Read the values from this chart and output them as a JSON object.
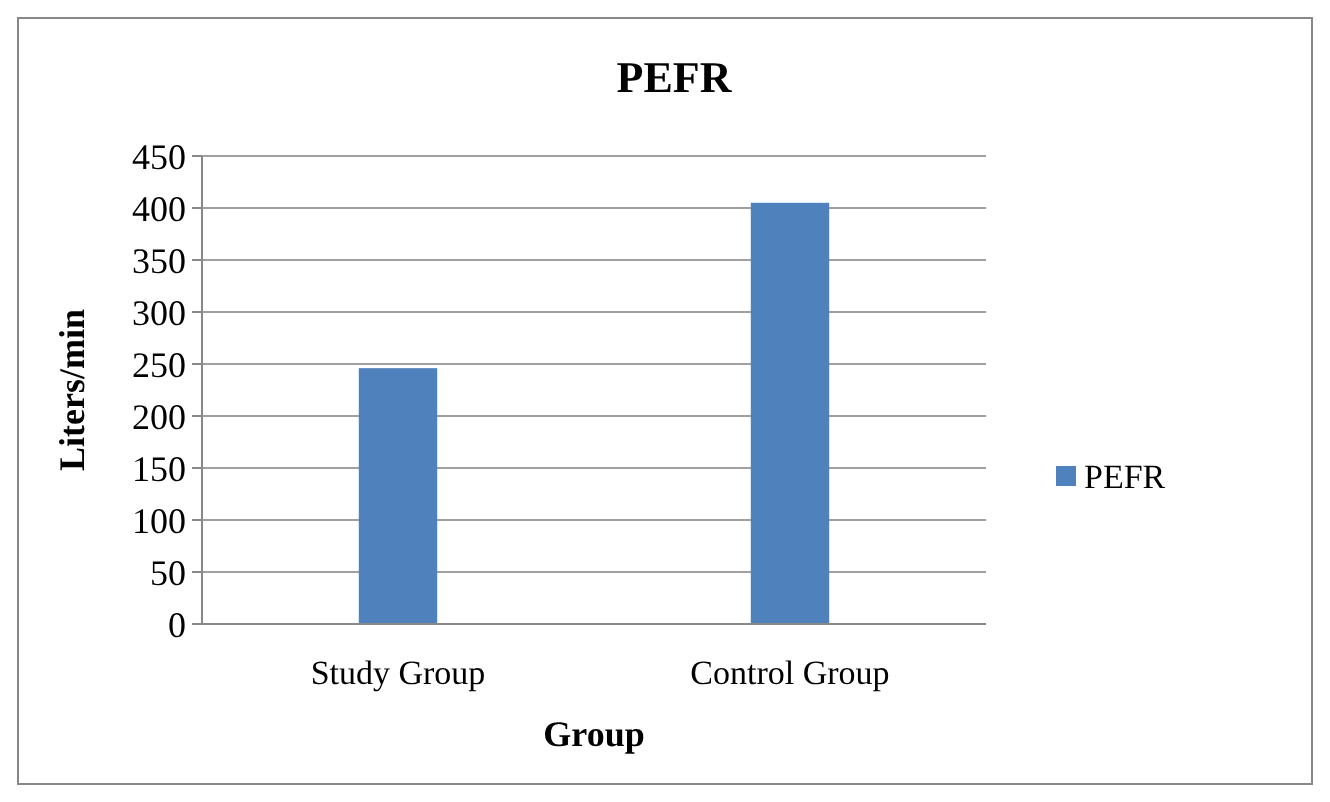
{
  "chart_data": {
    "type": "bar",
    "title": "PEFR",
    "xlabel": "Group",
    "ylabel": "Liters/min",
    "categories": [
      "Study Group",
      "Control Group"
    ],
    "series": [
      {
        "name": "PEFR",
        "color": "#4f81bd",
        "values": [
          246,
          405
        ]
      }
    ],
    "ylim": [
      0,
      450
    ],
    "yticks": [
      0,
      50,
      100,
      150,
      200,
      250,
      300,
      350,
      400,
      450
    ],
    "grid": "y",
    "legend": "right"
  }
}
